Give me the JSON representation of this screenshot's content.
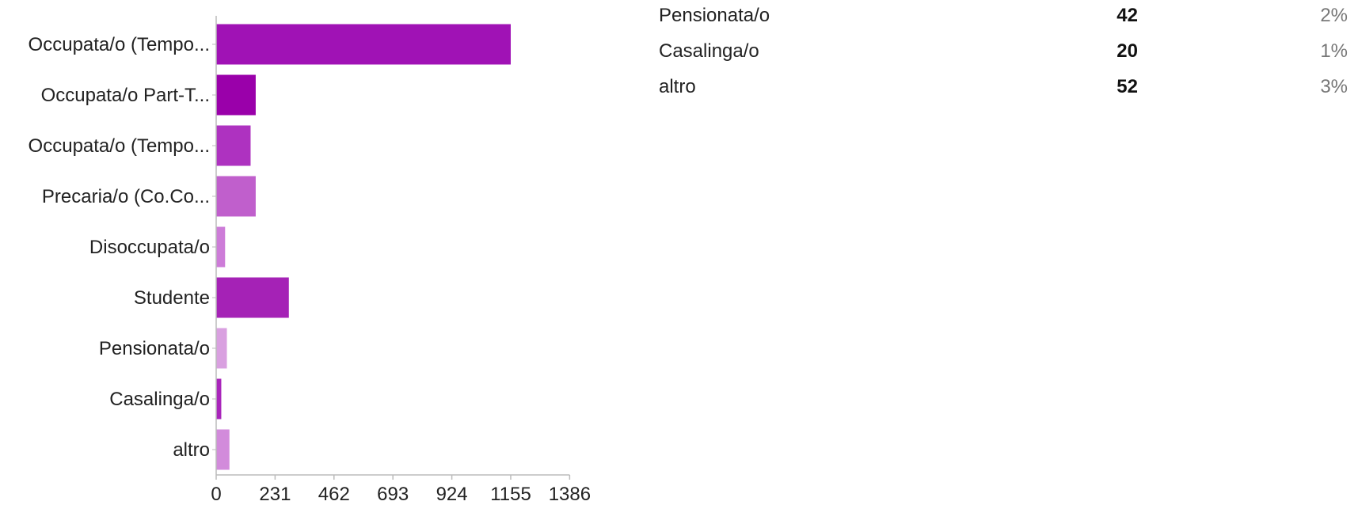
{
  "chart_data": {
    "type": "bar",
    "orientation": "horizontal",
    "categories": [
      "Occupata/o (Tempo...",
      "Occupata/o Part-T...",
      "Occupata/o (Tempo...",
      "Precaria/o (Co.Co...",
      "Disoccupata/o",
      "Studente",
      "Pensionata/o",
      "Casalinga/o",
      "altro"
    ],
    "values": [
      1155,
      155,
      135,
      155,
      35,
      285,
      42,
      20,
      52
    ],
    "bar_colors": [
      "#a012b5",
      "#9a00aa",
      "#ae32c0",
      "#c05fcc",
      "#cd7cd8",
      "#a522b6",
      "#d9a0e0",
      "#a925bb",
      "#d28bdb"
    ],
    "axis_color": "#bbbbbb",
    "xticks": [
      "0",
      "231",
      "462",
      "693",
      "924",
      "1155",
      "1386"
    ],
    "xlim": [
      0,
      1386
    ],
    "grid": false,
    "legend": "none"
  },
  "summary": {
    "rows": [
      {
        "label": "Pensionata/o",
        "count": "42",
        "percent": "2%"
      },
      {
        "label": "Casalinga/o",
        "count": "20",
        "percent": "1%"
      },
      {
        "label": "altro",
        "count": "52",
        "percent": "3%"
      }
    ]
  }
}
